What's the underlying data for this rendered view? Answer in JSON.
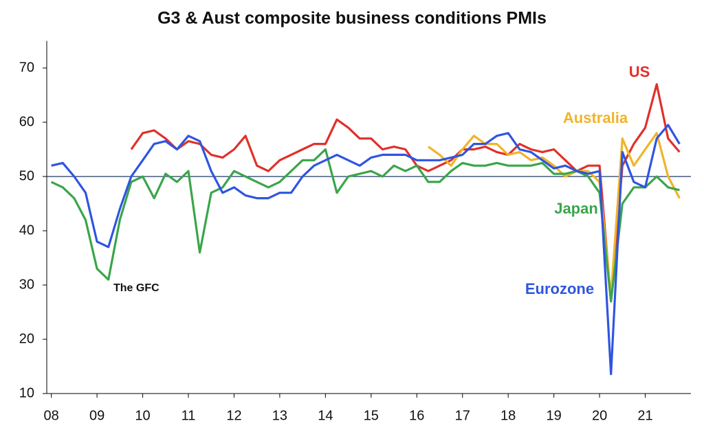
{
  "chart_data": {
    "type": "line",
    "title": "G3 & Aust composite business conditions PMIs",
    "x": [
      2008,
      2008.25,
      2008.5,
      2008.75,
      2009,
      2009.25,
      2009.5,
      2009.75,
      2010,
      2010.25,
      2010.5,
      2010.75,
      2011,
      2011.25,
      2011.5,
      2011.75,
      2012,
      2012.25,
      2012.5,
      2012.75,
      2013,
      2013.25,
      2013.5,
      2013.75,
      2014,
      2014.25,
      2014.5,
      2014.75,
      2015,
      2015.25,
      2015.5,
      2015.75,
      2016,
      2016.25,
      2016.5,
      2016.75,
      2017,
      2017.25,
      2017.5,
      2017.75,
      2018,
      2018.25,
      2018.5,
      2018.75,
      2019,
      2019.25,
      2019.5,
      2019.75,
      2020,
      2020.25,
      2020.5,
      2020.75,
      2021,
      2021.25,
      2021.5,
      2021.75
    ],
    "series": [
      {
        "name": "US",
        "color": "#e0302a",
        "values": [
          null,
          null,
          null,
          null,
          null,
          null,
          null,
          55,
          58,
          58.5,
          57,
          55,
          56.5,
          56,
          54,
          53.5,
          55,
          57.5,
          52,
          51,
          53,
          54,
          55,
          56,
          56,
          60.5,
          59,
          57,
          57,
          55,
          55.5,
          55,
          52,
          51,
          52,
          53,
          55,
          55,
          55.5,
          54.5,
          54,
          56,
          55,
          54.5,
          55,
          53,
          51,
          52,
          52,
          27,
          52,
          56,
          59,
          67,
          57,
          54.5
        ]
      },
      {
        "name": "Australia",
        "color": "#f0b429",
        "values": [
          null,
          null,
          null,
          null,
          null,
          null,
          null,
          null,
          null,
          null,
          null,
          null,
          null,
          null,
          null,
          null,
          null,
          null,
          null,
          null,
          null,
          null,
          null,
          null,
          null,
          null,
          null,
          null,
          null,
          null,
          null,
          null,
          null,
          55.5,
          54,
          52,
          55,
          57.5,
          56,
          56,
          54,
          54.5,
          53,
          53.5,
          52,
          50,
          51,
          51,
          49,
          28,
          57,
          52,
          55,
          58,
          50,
          46
        ]
      },
      {
        "name": "Japan",
        "color": "#3aa54a",
        "values": [
          49,
          48,
          46,
          42,
          33,
          31,
          42,
          49,
          50,
          46,
          50.5,
          49,
          51,
          36,
          47,
          48,
          51,
          50,
          49,
          48,
          49,
          51,
          53,
          53,
          55,
          47,
          50,
          50.5,
          51,
          50,
          52,
          51,
          52,
          49,
          49,
          51,
          52.5,
          52,
          52,
          52.5,
          52,
          52,
          52,
          52.5,
          50.5,
          50.5,
          51,
          50,
          47,
          27,
          45,
          48,
          48,
          50,
          48,
          47.5
        ]
      },
      {
        "name": "Eurozone",
        "color": "#2f55e0",
        "values": [
          52,
          52.5,
          50,
          47,
          38,
          37,
          44,
          50,
          53,
          56,
          56.5,
          55,
          57.5,
          56.5,
          51,
          47,
          48,
          46.5,
          46,
          46,
          47,
          47,
          50,
          52,
          53,
          54,
          53,
          52,
          53.5,
          54,
          54,
          54,
          53,
          53,
          53,
          53.5,
          54,
          56,
          56,
          57.5,
          58,
          55,
          54.5,
          53,
          51.5,
          52,
          51,
          50.5,
          51,
          13.6,
          54.5,
          49,
          48,
          57,
          59.5,
          56
        ]
      }
    ],
    "reference_line": 50,
    "annotations": [
      "The GFC"
    ],
    "xlim": [
      2007.9,
      2022.0
    ],
    "xticks": [
      {
        "value": 2008,
        "label": "08"
      },
      {
        "value": 2009,
        "label": "09"
      },
      {
        "value": 2010,
        "label": "10"
      },
      {
        "value": 2011,
        "label": "11"
      },
      {
        "value": 2012,
        "label": "12"
      },
      {
        "value": 2013,
        "label": "13"
      },
      {
        "value": 2014,
        "label": "14"
      },
      {
        "value": 2015,
        "label": "15"
      },
      {
        "value": 2016,
        "label": "16"
      },
      {
        "value": 2017,
        "label": "17"
      },
      {
        "value": 2018,
        "label": "18"
      },
      {
        "value": 2019,
        "label": "19"
      },
      {
        "value": 2020,
        "label": "20"
      },
      {
        "value": 2021,
        "label": "21"
      }
    ],
    "ylim": [
      10,
      75
    ],
    "yticks": [
      10,
      20,
      30,
      40,
      50,
      60,
      70
    ]
  }
}
